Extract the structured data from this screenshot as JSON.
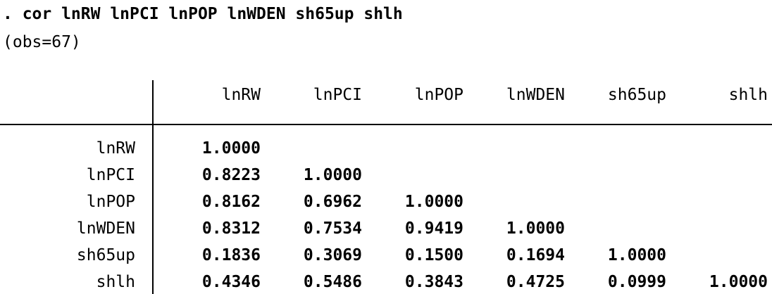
{
  "command": ". cor lnRW lnPCI lnPOP lnWDEN sh65up shlh",
  "obs_line": "(obs=67)",
  "table": {
    "columns": [
      "lnRW",
      "lnPCI",
      "lnPOP",
      "lnWDEN",
      "sh65up",
      "shlh"
    ],
    "rows": [
      {
        "label": "lnRW",
        "values": [
          "1.0000"
        ]
      },
      {
        "label": "lnPCI",
        "values": [
          "0.8223",
          "1.0000"
        ]
      },
      {
        "label": "lnPOP",
        "values": [
          "0.8162",
          "0.6962",
          "1.0000"
        ]
      },
      {
        "label": "lnWDEN",
        "values": [
          "0.8312",
          "0.7534",
          "0.9419",
          "1.0000"
        ]
      },
      {
        "label": "sh65up",
        "values": [
          "0.1836",
          "0.3069",
          "0.1500",
          "0.1694",
          "1.0000"
        ]
      },
      {
        "label": "shlh",
        "values": [
          "0.4346",
          "0.5486",
          "0.3843",
          "0.4725",
          "0.0999",
          "1.0000"
        ]
      }
    ]
  }
}
